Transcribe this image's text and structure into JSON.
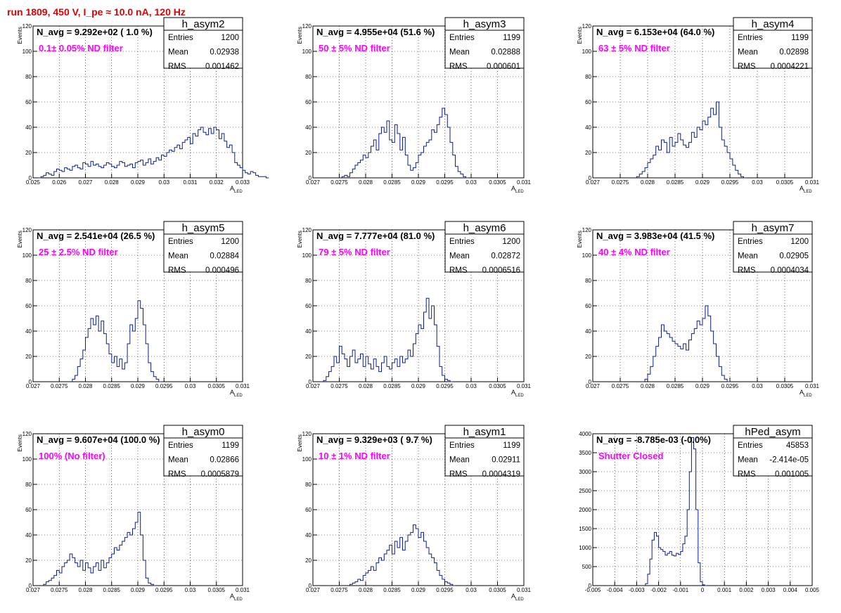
{
  "title": "run 1809,   450 V, I_pe ≈ 10.0 nA, 120 Hz",
  "colors": {
    "histogram_line": "#0b1f8a",
    "title": "#e00000",
    "annotation": "#ff00ff"
  },
  "chart_data": [
    {
      "type": "histogram",
      "name": "h_asym2",
      "stats": {
        "entries_label": "Entries",
        "entries": "1200",
        "mean_label": "Mean",
        "mean": "0.02938",
        "rms_label": "RMS",
        "rms": "0.001462"
      },
      "navg": "N_avg = 9.292e+02 ( 1.0 %)",
      "annotation": "0.1± 0.05% ND filter",
      "ylabel": "Events",
      "xlabel": "A",
      "xlabel_sub": "LED",
      "xlim": [
        0.025,
        0.033
      ],
      "ylim": [
        0,
        120
      ],
      "grid": true,
      "xticks": [
        0.025,
        0.026,
        0.027,
        0.028,
        0.029,
        0.03,
        0.031,
        0.032,
        0.033
      ],
      "xtick_labels": [
        "0.025",
        "0.026",
        "0.027",
        "0.028",
        "0.029",
        "0.03",
        "0.031",
        "0.032",
        "0.033"
      ],
      "yticks": [
        0,
        20,
        40,
        60,
        80,
        100,
        120
      ],
      "ytick_labels": [
        "0",
        "20",
        "40",
        "60",
        "80",
        "100",
        "120"
      ],
      "bins_x0": 0.0252,
      "bin_width": 0.0001,
      "counts": [
        0,
        1,
        2,
        4,
        3,
        2,
        5,
        7,
        6,
        5,
        8,
        7,
        6,
        9,
        10,
        8,
        7,
        12,
        11,
        9,
        13,
        10,
        11,
        9,
        8,
        10,
        12,
        11,
        9,
        8,
        10,
        13,
        12,
        9,
        10,
        11,
        8,
        12,
        13,
        14,
        10,
        12,
        15,
        11,
        13,
        16,
        14,
        18,
        17,
        20,
        22,
        21,
        24,
        26,
        23,
        28,
        30,
        32,
        27,
        35,
        33,
        38,
        40,
        36,
        34,
        39,
        35,
        40,
        38,
        31,
        35,
        29,
        24,
        26,
        20,
        12,
        10,
        8,
        6,
        4,
        3,
        5,
        4,
        2,
        1,
        1,
        1,
        0
      ]
    },
    {
      "type": "histogram",
      "name": "h_asym3",
      "stats": {
        "entries_label": "Entries",
        "entries": "1199",
        "mean_label": "Mean",
        "mean": "0.02888",
        "rms_label": "RMS",
        "rms": "0.000601"
      },
      "navg": "N_avg = 4.955e+04 (51.6 %)",
      "annotation": "50 ± 5% ND filter",
      "ylabel": "Events",
      "xlabel": "A",
      "xlabel_sub": "LED",
      "xlim": [
        0.027,
        0.031
      ],
      "ylim": [
        0,
        120
      ],
      "grid": true,
      "xticks": [
        0.027,
        0.0275,
        0.028,
        0.0285,
        0.029,
        0.0295,
        0.03,
        0.0305,
        0.031
      ],
      "xtick_labels": [
        "0.027",
        "0.0275",
        "0.028",
        "0.0285",
        "0.029",
        "0.0295",
        "0.03",
        "0.0305",
        "0.031"
      ],
      "yticks": [
        0,
        20,
        40,
        60,
        80,
        100,
        120
      ],
      "ytick_labels": [
        "0",
        "20",
        "40",
        "60",
        "80",
        "100",
        "120"
      ],
      "bins_x0": 0.02755,
      "bin_width": 5e-05,
      "counts": [
        1,
        2,
        1,
        4,
        7,
        10,
        12,
        14,
        18,
        16,
        20,
        25,
        30,
        22,
        35,
        40,
        36,
        45,
        30,
        28,
        42,
        35,
        22,
        32,
        18,
        10,
        6,
        8,
        12,
        18,
        20,
        25,
        28,
        30,
        38,
        36,
        42,
        48,
        55,
        50,
        40,
        28,
        18,
        9,
        5,
        3,
        1,
        0
      ]
    },
    {
      "type": "histogram",
      "name": "h_asym4",
      "stats": {
        "entries_label": "Entries",
        "entries": "1199",
        "mean_label": "Mean",
        "mean": "0.02898",
        "rms_label": "RMS",
        "rms": "0.0004221"
      },
      "navg": "N_avg = 6.153e+04 (64.0 %)",
      "annotation": "63 ± 5% ND filter",
      "ylabel": "Events",
      "xlabel": "A",
      "xlabel_sub": "LED",
      "xlim": [
        0.027,
        0.031
      ],
      "ylim": [
        0,
        120
      ],
      "grid": true,
      "xticks": [
        0.027,
        0.0275,
        0.028,
        0.0285,
        0.029,
        0.0295,
        0.03,
        0.0305,
        0.031
      ],
      "xtick_labels": [
        "0.027",
        "0.0275",
        "0.028",
        "0.0285",
        "0.029",
        "0.0295",
        "0.03",
        "0.0305",
        "0.031"
      ],
      "yticks": [
        0,
        20,
        40,
        60,
        80,
        100,
        120
      ],
      "ytick_labels": [
        "0",
        "20",
        "40",
        "60",
        "80",
        "100",
        "120"
      ],
      "bins_x0": 0.0278,
      "bin_width": 5e-05,
      "counts": [
        1,
        3,
        5,
        8,
        12,
        15,
        18,
        25,
        22,
        30,
        28,
        20,
        32,
        25,
        28,
        35,
        30,
        26,
        24,
        28,
        36,
        32,
        40,
        38,
        45,
        42,
        48,
        55,
        50,
        60,
        40,
        30,
        25,
        20,
        15,
        10,
        6,
        3,
        1,
        0
      ]
    },
    {
      "type": "histogram",
      "name": "h_asym5",
      "stats": {
        "entries_label": "Entries",
        "entries": "1200",
        "mean_label": "Mean",
        "mean": "0.02884",
        "rms_label": "RMS",
        "rms": "0.000496"
      },
      "navg": "N_avg = 2.541e+04 (26.5 %)",
      "annotation": "25 ± 2.5% ND filter",
      "ylabel": "Events",
      "xlabel": "A",
      "xlabel_sub": "LED",
      "xlim": [
        0.027,
        0.031
      ],
      "ylim": [
        0,
        120
      ],
      "grid": true,
      "xticks": [
        0.027,
        0.0275,
        0.028,
        0.0285,
        0.029,
        0.0295,
        0.03,
        0.0305,
        0.031
      ],
      "xtick_labels": [
        "0.027",
        "0.0275",
        "0.028",
        "0.0285",
        "0.029",
        "0.0295",
        "0.03",
        "0.0305",
        "0.031"
      ],
      "yticks": [
        0,
        20,
        40,
        60,
        80,
        100,
        120
      ],
      "ytick_labels": [
        "0",
        "20",
        "40",
        "60",
        "80",
        "100",
        "120"
      ],
      "bins_x0": 0.02775,
      "bin_width": 5e-05,
      "counts": [
        2,
        5,
        12,
        18,
        25,
        35,
        42,
        50,
        45,
        52,
        40,
        48,
        38,
        30,
        22,
        15,
        20,
        12,
        18,
        10,
        15,
        30,
        45,
        40,
        50,
        64,
        58,
        45,
        30,
        15,
        8,
        4,
        2,
        0
      ]
    },
    {
      "type": "histogram",
      "name": "h_asym6",
      "stats": {
        "entries_label": "Entries",
        "entries": "1200",
        "mean_label": "Mean",
        "mean": "0.02872",
        "rms_label": "RMS",
        "rms": "0.0006516"
      },
      "navg": "N_avg = 7.777e+04 (81.0 %)",
      "annotation": "79 ± 5% ND filter",
      "ylabel": "Events",
      "xlabel": "A",
      "xlabel_sub": "LED",
      "xlim": [
        0.027,
        0.031
      ],
      "ylim": [
        0,
        120
      ],
      "grid": true,
      "xticks": [
        0.027,
        0.0275,
        0.028,
        0.0285,
        0.029,
        0.0295,
        0.03,
        0.0305,
        0.031
      ],
      "xtick_labels": [
        "0.027",
        "0.0275",
        "0.028",
        "0.0285",
        "0.029",
        "0.0295",
        "0.03",
        "0.0305",
        "0.031"
      ],
      "yticks": [
        0,
        20,
        40,
        60,
        80,
        100,
        120
      ],
      "ytick_labels": [
        "0",
        "20",
        "40",
        "60",
        "80",
        "100",
        "120"
      ],
      "bins_x0": 0.0272,
      "bin_width": 5e-05,
      "counts": [
        1,
        4,
        8,
        12,
        20,
        15,
        28,
        22,
        18,
        12,
        20,
        25,
        15,
        18,
        22,
        12,
        20,
        14,
        10,
        18,
        12,
        8,
        15,
        20,
        12,
        10,
        15,
        18,
        12,
        20,
        15,
        18,
        25,
        20,
        30,
        38,
        45,
        42,
        55,
        66,
        50,
        60,
        45,
        28,
        12,
        5,
        2,
        1,
        0
      ]
    },
    {
      "type": "histogram",
      "name": "h_asym7",
      "stats": {
        "entries_label": "Entries",
        "entries": "1200",
        "mean_label": "Mean",
        "mean": "0.02905",
        "rms_label": "RMS",
        "rms": "0.0004034"
      },
      "navg": "N_avg = 3.983e+04 (41.5 %)",
      "annotation": "40 ± 4% ND filter",
      "ylabel": "Events",
      "xlabel": "A",
      "xlabel_sub": "LED",
      "xlim": [
        0.027,
        0.031
      ],
      "ylim": [
        0,
        120
      ],
      "grid": true,
      "xticks": [
        0.027,
        0.0275,
        0.028,
        0.0285,
        0.029,
        0.0295,
        0.03,
        0.0305,
        0.031
      ],
      "xtick_labels": [
        "0.027",
        "0.0275",
        "0.028",
        "0.0285",
        "0.029",
        "0.0295",
        "0.03",
        "0.0305",
        "0.031"
      ],
      "yticks": [
        0,
        20,
        40,
        60,
        80,
        100,
        120
      ],
      "ytick_labels": [
        "0",
        "20",
        "40",
        "60",
        "80",
        "100",
        "120"
      ],
      "bins_x0": 0.02795,
      "bin_width": 5e-05,
      "counts": [
        2,
        6,
        12,
        20,
        28,
        35,
        45,
        40,
        38,
        35,
        32,
        30,
        28,
        26,
        30,
        25,
        33,
        38,
        42,
        48,
        45,
        50,
        60,
        52,
        40,
        30,
        20,
        12,
        5,
        2,
        0
      ]
    },
    {
      "type": "histogram",
      "name": "h_asym0",
      "stats": {
        "entries_label": "Entries",
        "entries": "1199",
        "mean_label": "Mean",
        "mean": "0.02866",
        "rms_label": "RMS",
        "rms": "0.0005879"
      },
      "navg": "N_avg = 9.607e+04 (100.0 %)",
      "annotation": "100% (No filter)",
      "ylabel": "Events",
      "xlabel": "A",
      "xlabel_sub": "LED",
      "xlim": [
        0.027,
        0.031
      ],
      "ylim": [
        0,
        120
      ],
      "grid": true,
      "xticks": [
        0.027,
        0.0275,
        0.028,
        0.0285,
        0.029,
        0.0295,
        0.03,
        0.0305,
        0.031
      ],
      "xtick_labels": [
        "0.027",
        "0.0275",
        "0.028",
        "0.0285",
        "0.029",
        "0.0295",
        "0.03",
        "0.0305",
        "0.031"
      ],
      "yticks": [
        0,
        20,
        40,
        60,
        80,
        100,
        120
      ],
      "ytick_labels": [
        "0",
        "20",
        "40",
        "60",
        "80",
        "100",
        "120"
      ],
      "bins_x0": 0.0272,
      "bin_width": 5e-05,
      "counts": [
        1,
        3,
        4,
        6,
        8,
        12,
        10,
        15,
        18,
        20,
        25,
        22,
        18,
        15,
        20,
        12,
        18,
        14,
        10,
        15,
        18,
        12,
        20,
        14,
        18,
        22,
        25,
        30,
        28,
        32,
        35,
        38,
        42,
        40,
        45,
        50,
        58,
        40,
        20,
        6,
        2,
        1,
        0
      ]
    },
    {
      "type": "histogram",
      "name": "h_asym1",
      "stats": {
        "entries_label": "Entries",
        "entries": "1199",
        "mean_label": "Mean",
        "mean": "0.02911",
        "rms_label": "RMS",
        "rms": "0.0004319"
      },
      "navg": "N_avg = 9.329e+03 ( 9.7 %)",
      "annotation": "10 ± 1% ND filter",
      "ylabel": "Events",
      "xlabel": "A",
      "xlabel_sub": "LED",
      "xlim": [
        0.027,
        0.031
      ],
      "ylim": [
        0,
        120
      ],
      "grid": true,
      "xticks": [
        0.027,
        0.0275,
        0.028,
        0.0285,
        0.029,
        0.0295,
        0.03,
        0.0305,
        0.031
      ],
      "xtick_labels": [
        "0.027",
        "0.0275",
        "0.028",
        "0.0285",
        "0.029",
        "0.0295",
        "0.03",
        "0.0305",
        "0.031"
      ],
      "yticks": [
        0,
        20,
        40,
        60,
        80,
        100,
        120
      ],
      "ytick_labels": [
        "0",
        "20",
        "40",
        "60",
        "80",
        "100",
        "120"
      ],
      "bins_x0": 0.0277,
      "bin_width": 5e-05,
      "counts": [
        1,
        2,
        3,
        5,
        4,
        8,
        10,
        12,
        15,
        12,
        18,
        22,
        20,
        25,
        28,
        32,
        25,
        35,
        30,
        38,
        28,
        35,
        40,
        42,
        48,
        45,
        38,
        42,
        35,
        30,
        25,
        22,
        18,
        12,
        8,
        5,
        3,
        2,
        1,
        0
      ]
    },
    {
      "type": "histogram",
      "name": "hPed_asym",
      "stats": {
        "entries_label": "Entries",
        "entries": "45853",
        "mean_label": "Mean",
        "mean": "-2.414e-05",
        "rms_label": "RMS",
        "rms": "0.001005"
      },
      "navg": "N_avg = -8.785e-03 (-0.0%)",
      "annotation": "Shutter Closed",
      "ylabel": "",
      "xlabel": "",
      "xlabel_sub": "",
      "xlim": [
        -0.005,
        0.005
      ],
      "ylim": [
        0,
        4000
      ],
      "grid": true,
      "xticks": [
        -0.005,
        -0.004,
        -0.003,
        -0.002,
        -0.001,
        0,
        0.001,
        0.002,
        0.003,
        0.004,
        0.005
      ],
      "xtick_labels": [
        "-0.005",
        "-0.004",
        "-0.003",
        "-0.002",
        "-0.001",
        "0",
        "0.001",
        "0.002",
        "0.003",
        "0.004",
        "0.005"
      ],
      "yticks": [
        0,
        500,
        1000,
        1500,
        2000,
        2500,
        3000,
        3500,
        4000
      ],
      "ytick_labels": [
        "0",
        "500",
        "1000",
        "1500",
        "2000",
        "2500",
        "3000",
        "3500",
        "4000"
      ],
      "bins_x0": -0.0026,
      "bin_width": 0.0001,
      "counts": [
        50,
        300,
        700,
        1200,
        1400,
        1300,
        1000,
        950,
        900,
        800,
        850,
        900,
        800,
        780,
        850,
        820,
        900,
        1100,
        1300,
        2000,
        3000,
        3900,
        3600,
        2000,
        600,
        100,
        20,
        0
      ]
    }
  ]
}
